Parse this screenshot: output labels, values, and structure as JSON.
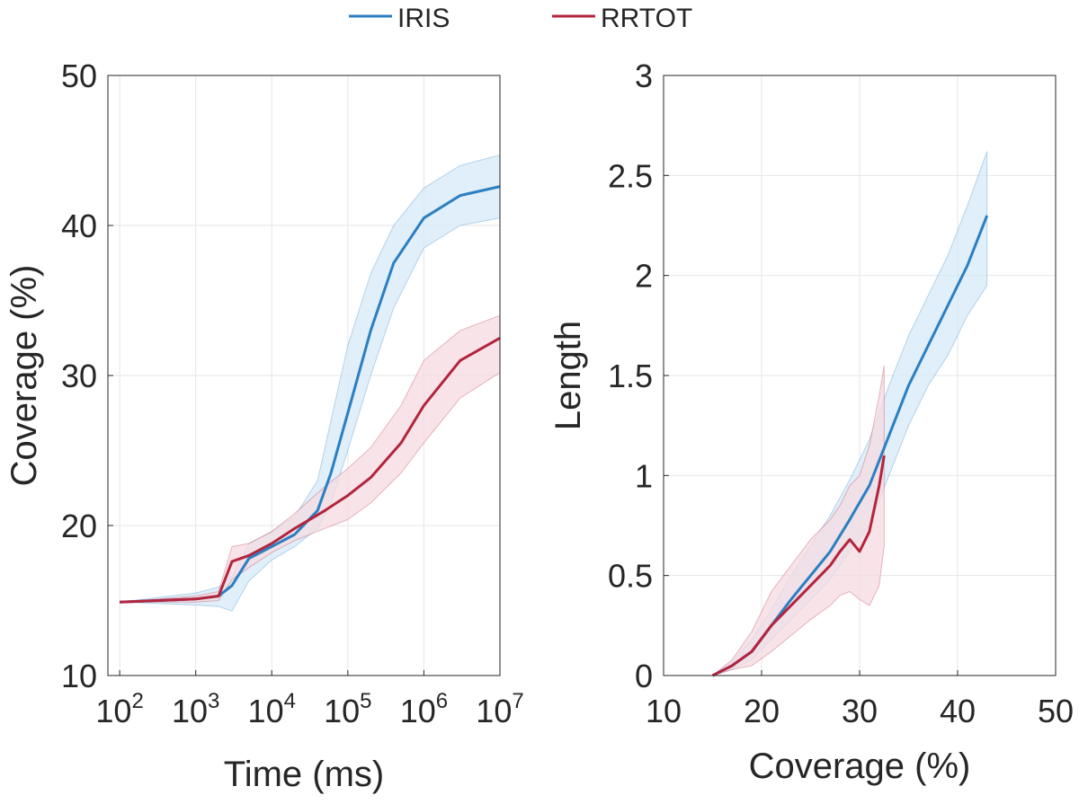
{
  "legend": {
    "entries": [
      {
        "name": "IRIS",
        "color": "#2a7fc2"
      },
      {
        "name": "RRTOT",
        "color": "#b3243d"
      }
    ]
  },
  "chart_data": [
    {
      "type": "line",
      "id": "coverage-vs-time",
      "xscale": "log",
      "xlabel": "Time (ms)",
      "ylabel": "Coverage (%)",
      "xlim": [
        70,
        10000000
      ],
      "ylim": [
        10,
        50
      ],
      "xticks": [
        {
          "base": "10",
          "exp": "2",
          "value": 100
        },
        {
          "base": "10",
          "exp": "3",
          "value": 1000
        },
        {
          "base": "10",
          "exp": "4",
          "value": 10000
        },
        {
          "base": "10",
          "exp": "5",
          "value": 100000
        },
        {
          "base": "10",
          "exp": "6",
          "value": 1000000
        },
        {
          "base": "10",
          "exp": "7",
          "value": 10000000
        }
      ],
      "yticks": [
        "10",
        "20",
        "30",
        "40",
        "50"
      ],
      "grid": true,
      "series": [
        {
          "name": "IRIS",
          "color": "#2a7fc2",
          "band_color": "#d6e9f7",
          "x": [
            100,
            1000,
            2000,
            3000,
            5000,
            10000,
            20000,
            40000,
            60000,
            100000,
            200000,
            400000,
            1000000,
            3000000,
            10000000
          ],
          "y": [
            14.9,
            15.1,
            15.3,
            16.0,
            17.8,
            18.6,
            19.4,
            21.0,
            23.5,
            27.5,
            33.0,
            37.5,
            40.5,
            42.0,
            42.6
          ],
          "lower": [
            14.9,
            14.7,
            14.6,
            14.3,
            16.3,
            17.7,
            18.6,
            19.8,
            21.5,
            25.0,
            30.0,
            34.5,
            38.5,
            40.0,
            40.5
          ],
          "upper": [
            14.9,
            15.5,
            15.9,
            16.6,
            18.8,
            19.6,
            20.6,
            23.0,
            27.0,
            32.0,
            36.8,
            40.0,
            42.5,
            44.0,
            44.7
          ]
        },
        {
          "name": "RRTOT",
          "color": "#b3243d",
          "band_color": "#f5dbe0",
          "x": [
            100,
            1000,
            2000,
            3000,
            5000,
            10000,
            20000,
            50000,
            100000,
            200000,
            500000,
            1000000,
            3000000,
            10000000
          ],
          "y": [
            14.9,
            15.1,
            15.3,
            17.6,
            18.0,
            18.8,
            19.8,
            21.0,
            22.0,
            23.2,
            25.5,
            28.0,
            31.0,
            32.5
          ],
          "lower": [
            14.9,
            14.9,
            15.0,
            16.4,
            17.2,
            18.2,
            19.0,
            19.8,
            20.4,
            21.5,
            23.5,
            25.5,
            28.5,
            30.2
          ],
          "upper": [
            14.9,
            15.3,
            15.6,
            18.6,
            18.8,
            19.6,
            20.8,
            22.6,
            23.8,
            25.2,
            28.0,
            31.0,
            33.0,
            34.0
          ]
        }
      ]
    },
    {
      "type": "line",
      "id": "length-vs-coverage",
      "xscale": "linear",
      "xlabel": "Coverage (%)",
      "ylabel": "Length",
      "xlim": [
        10,
        50
      ],
      "ylim": [
        0,
        3
      ],
      "xticks": [
        "10",
        "20",
        "30",
        "40",
        "50"
      ],
      "yticks": [
        "0",
        "0.5",
        "1",
        "1.5",
        "2",
        "2.5",
        "3"
      ],
      "grid": true,
      "series": [
        {
          "name": "IRIS",
          "color": "#2a7fc2",
          "band_color": "#d6e9f7",
          "x": [
            15,
            17,
            19,
            21,
            23,
            25,
            27,
            29,
            31,
            33,
            35,
            37,
            39,
            41,
            43
          ],
          "y": [
            0.0,
            0.05,
            0.12,
            0.25,
            0.38,
            0.5,
            0.62,
            0.78,
            0.95,
            1.2,
            1.45,
            1.65,
            1.85,
            2.05,
            2.3
          ],
          "lower": [
            0.0,
            0.03,
            0.08,
            0.18,
            0.28,
            0.38,
            0.48,
            0.62,
            0.75,
            1.0,
            1.25,
            1.45,
            1.6,
            1.8,
            1.95
          ],
          "upper": [
            0.0,
            0.07,
            0.18,
            0.33,
            0.5,
            0.65,
            0.8,
            0.98,
            1.18,
            1.45,
            1.7,
            1.9,
            2.1,
            2.35,
            2.62
          ]
        },
        {
          "name": "RRTOT",
          "color": "#b3243d",
          "band_color": "#f5dbe0",
          "x": [
            15,
            17,
            19,
            21,
            23,
            25,
            27,
            28,
            29,
            30,
            31,
            32,
            32.5
          ],
          "y": [
            0.0,
            0.05,
            0.12,
            0.25,
            0.35,
            0.45,
            0.55,
            0.62,
            0.68,
            0.62,
            0.72,
            0.95,
            1.1
          ],
          "lower": [
            0.0,
            0.03,
            0.05,
            0.12,
            0.2,
            0.28,
            0.35,
            0.4,
            0.42,
            0.38,
            0.35,
            0.45,
            0.65
          ],
          "upper": [
            0.0,
            0.08,
            0.22,
            0.42,
            0.55,
            0.68,
            0.78,
            0.85,
            0.95,
            1.0,
            1.15,
            1.4,
            1.55
          ]
        }
      ]
    }
  ]
}
